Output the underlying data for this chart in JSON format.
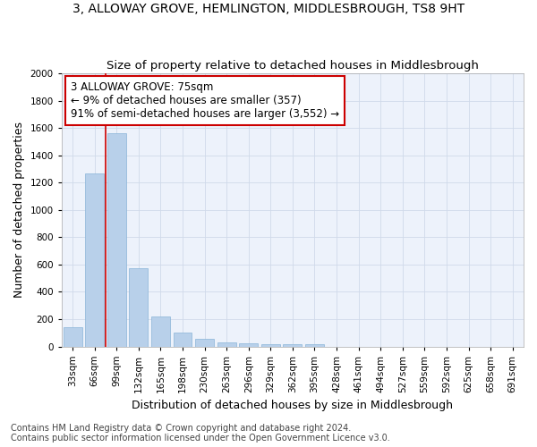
{
  "title": "3, ALLOWAY GROVE, HEMLINGTON, MIDDLESBROUGH, TS8 9HT",
  "subtitle": "Size of property relative to detached houses in Middlesbrough",
  "xlabel": "Distribution of detached houses by size in Middlesbrough",
  "ylabel": "Number of detached properties",
  "categories": [
    "33sqm",
    "66sqm",
    "99sqm",
    "132sqm",
    "165sqm",
    "198sqm",
    "230sqm",
    "263sqm",
    "296sqm",
    "329sqm",
    "362sqm",
    "395sqm",
    "428sqm",
    "461sqm",
    "494sqm",
    "527sqm",
    "559sqm",
    "592sqm",
    "625sqm",
    "658sqm",
    "691sqm"
  ],
  "values": [
    140,
    1265,
    1560,
    570,
    220,
    100,
    55,
    30,
    22,
    18,
    18,
    18,
    0,
    0,
    0,
    0,
    0,
    0,
    0,
    0,
    0
  ],
  "bar_color": "#b8d0ea",
  "bar_edge_color": "#8ab4d8",
  "grid_color": "#d0daea",
  "background_color": "#edf2fb",
  "red_line_x": 1.5,
  "annotation_text": "3 ALLOWAY GROVE: 75sqm\n← 9% of detached houses are smaller (357)\n91% of semi-detached houses are larger (3,552) →",
  "annotation_box_color": "#ffffff",
  "annotation_border_color": "#cc0000",
  "footnote1": "Contains HM Land Registry data © Crown copyright and database right 2024.",
  "footnote2": "Contains public sector information licensed under the Open Government Licence v3.0.",
  "ylim": [
    0,
    2000
  ],
  "yticks": [
    0,
    200,
    400,
    600,
    800,
    1000,
    1200,
    1400,
    1600,
    1800,
    2000
  ],
  "title_fontsize": 10,
  "subtitle_fontsize": 9.5,
  "axis_label_fontsize": 9,
  "tick_fontsize": 7.5,
  "annotation_fontsize": 8.5,
  "footnote_fontsize": 7
}
